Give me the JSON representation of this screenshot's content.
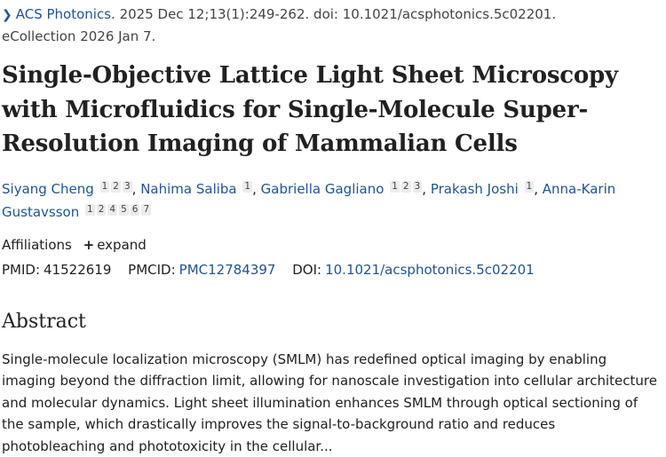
{
  "citation": {
    "journal": "ACS Photonics.",
    "details": "2025 Dec 12;13(1):249-262. doi: 10.1021/acsphotonics.5c02201.",
    "ecollection": "eCollection 2026 Jan 7."
  },
  "title": "Single-Objective Lattice Light Sheet Microscopy with Microfluidics for Single-Molecule Super-Resolution Imaging of Mammalian Cells",
  "authors": [
    {
      "name": "Siyang Cheng",
      "affs": [
        "1",
        "2",
        "3"
      ],
      "sep": ","
    },
    {
      "name": "Nahima Saliba",
      "affs": [
        "1"
      ],
      "sep": ","
    },
    {
      "name": "Gabriella Gagliano",
      "affs": [
        "1",
        "2",
        "3"
      ],
      "sep": ","
    },
    {
      "name": "Prakash Joshi",
      "affs": [
        "1"
      ],
      "sep": ","
    },
    {
      "name": "Anna-Karin Gustavsson",
      "affs": [
        "1",
        "2",
        "4",
        "5",
        "6",
        "7"
      ],
      "sep": ""
    }
  ],
  "affiliations": {
    "label": "Affiliations",
    "expand_label": "expand"
  },
  "ids": {
    "pmid_label": "PMID:",
    "pmid": "41522619",
    "pmcid_label": "PMCID:",
    "pmcid": "PMC12784397",
    "doi_label": "DOI:",
    "doi": "10.1021/acsphotonics.5c02201"
  },
  "abstract": {
    "heading": "Abstract",
    "text": "Single-molecule localization microscopy (SMLM) has redefined optical imaging by enabling imaging beyond the diffraction limit, allowing for nanoscale investigation into cellular architecture and molecular dynamics. Light sheet illumination enhances SMLM through optical sectioning of the sample, which drastically improves the signal-to-background ratio and reduces photobleaching and phototoxicity in the cellular..."
  },
  "colors": {
    "link": "#205493",
    "text": "#212121",
    "badge_bg": "#ececec"
  },
  "icons": {
    "chevron": "chevron-right-icon",
    "plus": "plus-icon"
  }
}
